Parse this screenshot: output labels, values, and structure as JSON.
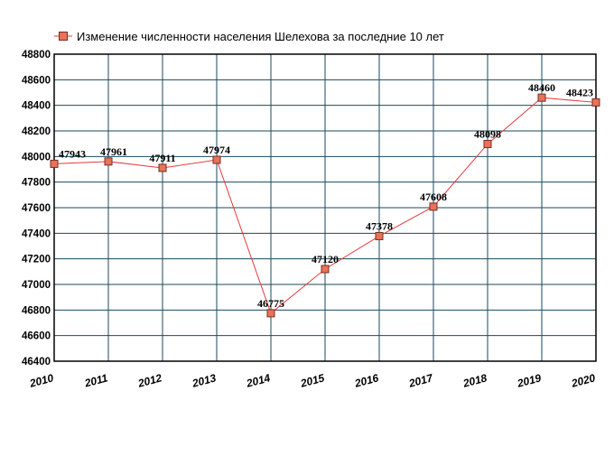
{
  "chart_data": {
    "type": "line",
    "title": "",
    "xlabel": "",
    "ylabel": "",
    "x": [
      2010,
      2011,
      2012,
      2013,
      2014,
      2015,
      2016,
      2017,
      2018,
      2019,
      2020
    ],
    "series": [
      {
        "name": "Изменение численности населения Шелехова за последние 10 лет",
        "values": [
          47943,
          47961,
          47911,
          47974,
          46775,
          47120,
          47378,
          47608,
          48098,
          48460,
          48423
        ],
        "line_color": "#e8393c",
        "marker_fill": "#e8735a",
        "marker_stroke": "#7a2d20"
      }
    ],
    "data_labels": [
      "47943",
      "47961",
      "47911",
      "47974",
      "46775",
      "47120",
      "47378",
      "47608",
      "48098",
      "48460",
      "48423"
    ],
    "ylim": [
      46400,
      48800
    ],
    "yticks": [
      46400,
      46600,
      46800,
      47000,
      47200,
      47400,
      47600,
      47800,
      48000,
      48200,
      48400,
      48600,
      48800
    ],
    "xticks": [
      "2010",
      "2011",
      "2012",
      "2013",
      "2014",
      "2015",
      "2016",
      "2017",
      "2018",
      "2019",
      "2020"
    ],
    "grid": true,
    "grid_color": "#1a4a5e",
    "legend_position": "top-left"
  }
}
